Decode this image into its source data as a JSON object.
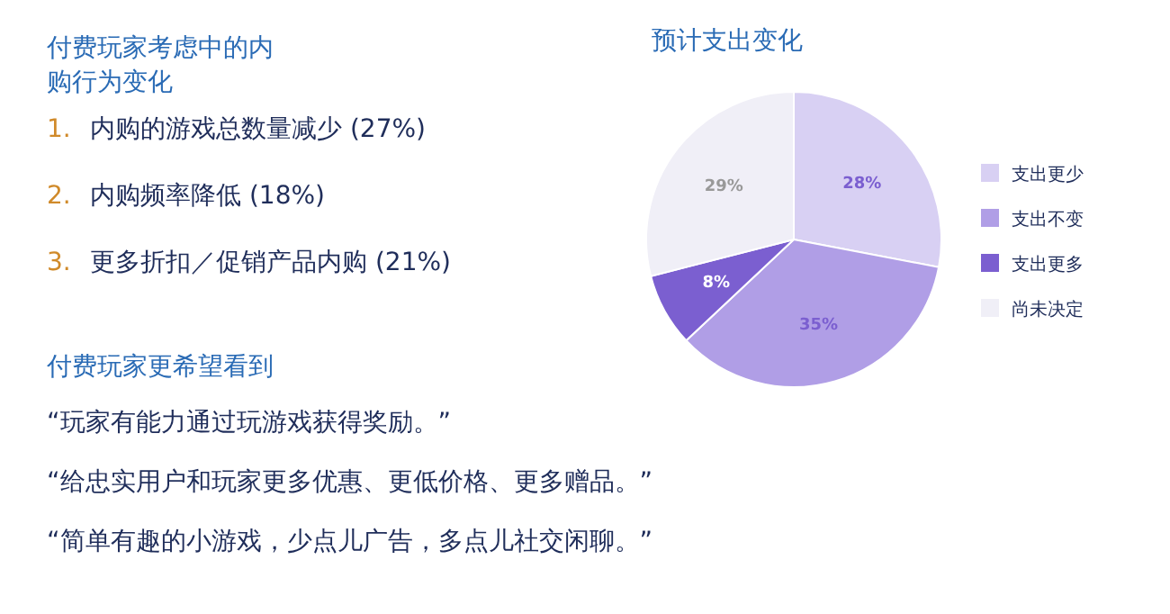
{
  "chart_data": [
    {
      "type": "other",
      "title": "付费玩家考虑中的内购行为变化",
      "annotations": [
        "1. 内购的游戏总数量减少 (27%)",
        "2. 内购频率降低 (18%)",
        "3. 更多折扣／促销产品内购 (21%)"
      ]
    },
    {
      "type": "other",
      "title": "付费玩家更希望看到",
      "annotations": [
        "“玩家有能力通过玩游戏获得奖励。”",
        "“给忠实用户和玩家更多优惠、更低价格、更多赠品。”",
        "“简单有趣的小游戏，少点儿广告，多点儿社交闲聊。”"
      ]
    },
    {
      "type": "pie",
      "title": "预计支出变化",
      "categories": [
        "支出更少",
        "支出不变",
        "支出更多",
        "尚未决定"
      ],
      "values": [
        28,
        35,
        8,
        29
      ],
      "colors": [
        "#d8d0f3",
        "#b09ee6",
        "#7b5fd0",
        "#f0eff7"
      ],
      "value_labels": [
        "28%",
        "35%",
        "8%",
        "29%"
      ],
      "legend": "right"
    }
  ]
}
